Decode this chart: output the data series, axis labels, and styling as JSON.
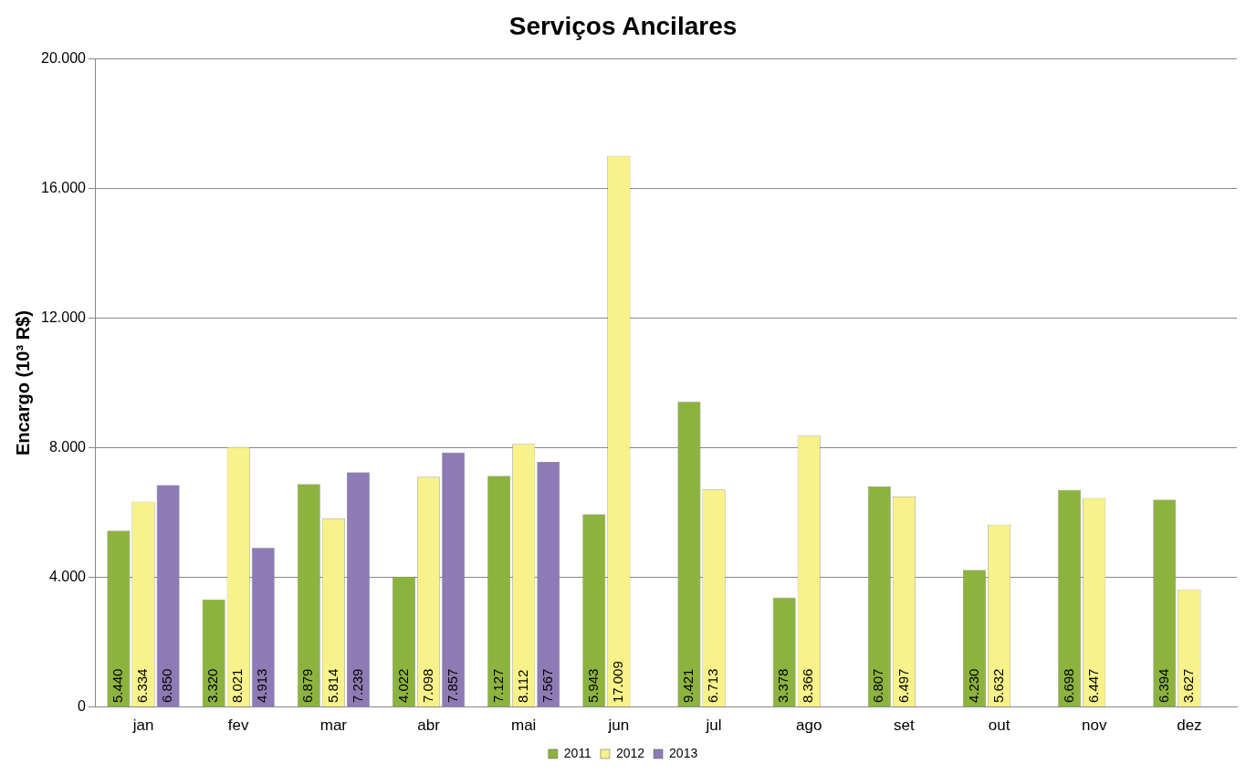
{
  "chart_data": {
    "type": "bar",
    "title": "Serviços Ancilares",
    "ylabel": "Encargo (10³ R$)",
    "categories": [
      "jan",
      "fev",
      "mar",
      "abr",
      "mai",
      "jun",
      "jul",
      "ago",
      "set",
      "out",
      "nov",
      "dez"
    ],
    "series": [
      {
        "name": "2011",
        "color": "#8db33f",
        "values": [
          5440,
          3320,
          6879,
          4022,
          7127,
          5943,
          9421,
          3378,
          6807,
          4230,
          6698,
          6394
        ],
        "value_labels": [
          "5.440",
          "3.320",
          "6.879",
          "4.022",
          "7.127",
          "5.943",
          "9.421",
          "3.378",
          "6.807",
          "4.230",
          "6.698",
          "6.394"
        ]
      },
      {
        "name": "2012",
        "color": "#f7f28a",
        "values": [
          6334,
          8021,
          5814,
          7098,
          8112,
          17009,
          6713,
          8366,
          6497,
          5632,
          6447,
          3627
        ],
        "value_labels": [
          "6.334",
          "8.021",
          "5.814",
          "7.098",
          "8.112",
          "17.009",
          "6.713",
          "8.366",
          "6.497",
          "5.632",
          "6.447",
          "3.627"
        ]
      },
      {
        "name": "2013",
        "color": "#8e7bb5",
        "values": [
          6850,
          4913,
          7239,
          7857,
          7567,
          null,
          null,
          null,
          null,
          null,
          null,
          null
        ],
        "value_labels": [
          "6.850",
          "4.913",
          "7.239",
          "7.857",
          "7.567",
          null,
          null,
          null,
          null,
          null,
          null,
          null
        ]
      }
    ],
    "ylim": [
      0,
      20000
    ],
    "yticks": [
      {
        "value": 0,
        "label": "0"
      },
      {
        "value": 4000,
        "label": "4.000"
      },
      {
        "value": 8000,
        "label": "8.000"
      },
      {
        "value": 12000,
        "label": "12.000"
      },
      {
        "value": 16000,
        "label": "16.000"
      },
      {
        "value": 20000,
        "label": "20.000"
      }
    ],
    "grid": "y",
    "legend": "bottom"
  }
}
